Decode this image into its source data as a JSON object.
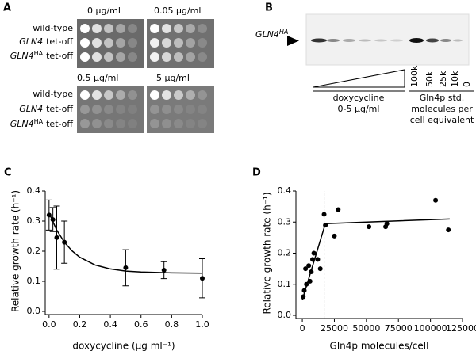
{
  "panel_a": {
    "label": "A",
    "concentrations": [
      "0 µg/ml",
      "0.05 µg/ml",
      "0.5 µg/ml",
      "5 µg/ml"
    ],
    "strains": [
      {
        "text": "wild-type"
      },
      {
        "gene": "GLN4",
        "text": "tet-off"
      },
      {
        "gene": "GLN4",
        "tag": "HA",
        "text": "tet-off"
      }
    ]
  },
  "panel_b": {
    "label": "B",
    "band": {
      "gene": "GLN4",
      "tag": "HA"
    },
    "treatment": [
      "doxycycline",
      "0-5 µg/ml"
    ],
    "standards": [
      "100k",
      "50k",
      "25k",
      "10k",
      "0"
    ],
    "standard_caption": [
      "Gln4p std.",
      "molecules per",
      "cell equivalent"
    ]
  },
  "chart_data": [
    {
      "type": "scatter",
      "title": "C",
      "xlabel": "doxycycline  (µg ml⁻¹)",
      "ylabel": "Relative growth rate (h⁻¹)",
      "xlim": [
        -0.025,
        1.0
      ],
      "ylim": [
        0,
        0.4
      ],
      "xticks": [
        {
          "value": 0,
          "label": "0.0"
        },
        0.2,
        0.4,
        0.6,
        0.8,
        {
          "value": 1,
          "label": "1.0"
        }
      ],
      "yticks": [
        {
          "value": 0,
          "label": "0.0"
        },
        0.1,
        0.2,
        0.3,
        0.4
      ],
      "series": [
        {
          "type": "scatter",
          "color": "#000000",
          "x": [
            0,
            0.025,
            0.05,
            0.1,
            0.5,
            0.75,
            1.0
          ],
          "values": [
            0.32,
            0.305,
            0.245,
            0.23,
            0.145,
            0.137,
            0.11
          ],
          "errors": [
            0.05,
            0.04,
            0.105,
            0.07,
            0.06,
            0.028,
            0.065
          ]
        },
        {
          "type": "line",
          "color": "#000000",
          "x": [
            0,
            0.05,
            0.1,
            0.15,
            0.2,
            0.3,
            0.4,
            0.5,
            0.6,
            0.8,
            1.0
          ],
          "values": [
            0.327,
            0.27,
            0.23,
            0.201,
            0.18,
            0.154,
            0.141,
            0.134,
            0.131,
            0.128,
            0.127
          ]
        }
      ]
    },
    {
      "type": "scatter",
      "title": "D",
      "xlabel": "Gln4p molecules/cell",
      "ylabel": "Relative growth rate (h⁻¹)",
      "xlim": [
        -5000,
        125000
      ],
      "ylim": [
        0,
        0.4
      ],
      "xticks": [
        0,
        25000,
        50000,
        75000,
        100000,
        125000
      ],
      "yticks": [
        {
          "value": 0,
          "label": "0.0"
        },
        0.1,
        0.2,
        0.3,
        0.4
      ],
      "vlines": [
        17000
      ],
      "series": [
        {
          "type": "scatter",
          "color": "#000000",
          "x": [
            700,
            1500,
            2500,
            3200,
            5000,
            6000,
            7000,
            8000,
            9000,
            12000,
            14000,
            17000,
            18000,
            25000,
            28000,
            52000,
            65000,
            66000,
            104000,
            114000
          ],
          "values": [
            0.06,
            0.08,
            0.15,
            0.1,
            0.16,
            0.11,
            0.14,
            0.18,
            0.2,
            0.18,
            0.15,
            0.325,
            0.29,
            0.255,
            0.34,
            0.285,
            0.285,
            0.295,
            0.37,
            0.275
          ]
        },
        {
          "type": "line",
          "color": "#000000",
          "x": [
            0,
            18000,
            115000
          ],
          "values": [
            0.05,
            0.295,
            0.31
          ]
        }
      ]
    }
  ]
}
